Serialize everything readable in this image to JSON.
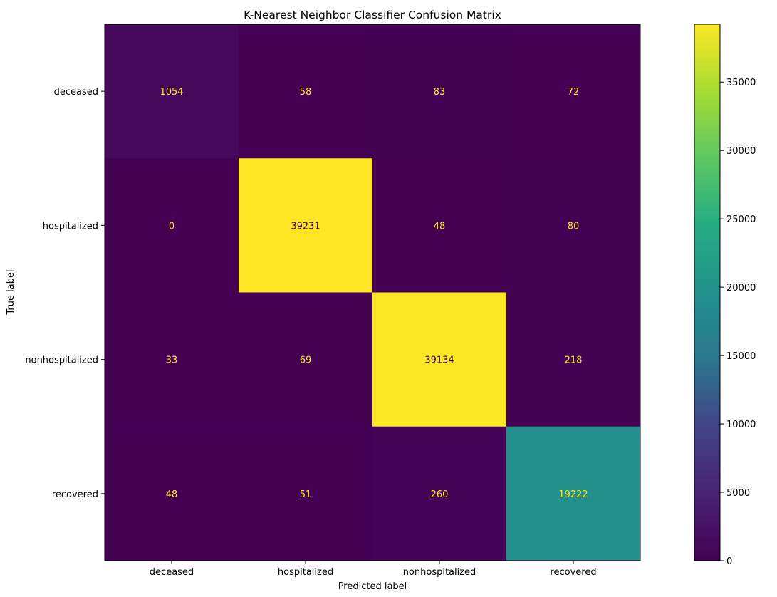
{
  "chart_data": {
    "type": "heatmap",
    "title": "K-Nearest Neighbor Classifier Confusion Matrix",
    "xlabel": "Predicted label",
    "ylabel": "True label",
    "x_categories": [
      "deceased",
      "hospitalized",
      "nonhospitalized",
      "recovered"
    ],
    "y_categories": [
      "deceased",
      "hospitalized",
      "nonhospitalized",
      "recovered"
    ],
    "values": [
      [
        1054,
        58,
        83,
        72
      ],
      [
        0,
        39231,
        48,
        80
      ],
      [
        33,
        69,
        39134,
        218
      ],
      [
        48,
        51,
        260,
        19222
      ]
    ],
    "colormap": "viridis",
    "colorbar": {
      "range": [
        0,
        39231
      ],
      "ticks": [
        0,
        5000,
        10000,
        15000,
        20000,
        25000,
        30000,
        35000
      ]
    },
    "text_color_low": "#fde725",
    "text_color_high": "#440154",
    "grid": false
  }
}
